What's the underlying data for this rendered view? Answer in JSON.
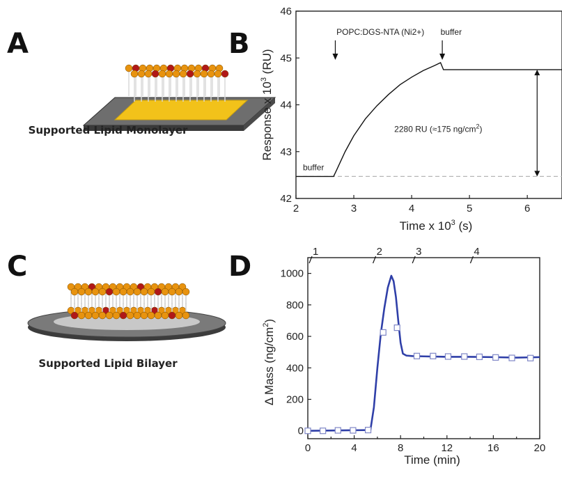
{
  "panels": {
    "A": {
      "letter": "A",
      "caption": "Supported Lipid Monolayer"
    },
    "B": {
      "letter": "B"
    },
    "C": {
      "letter": "C",
      "caption": "Supported Lipid Bilayer"
    },
    "D": {
      "letter": "D"
    }
  },
  "colors": {
    "bead_orange": "#e8930f",
    "bead_red": "#b01818",
    "substrate_yellow": "#f2c21a",
    "substrate_gray": "#7a7a7a",
    "series_blue": "#2f3fa8"
  },
  "chart_data": [
    {
      "id": "B",
      "type": "line",
      "xlabel_main": "Time x 10",
      "xlabel_exp": "3",
      "xlabel_unit": " (s)",
      "ylabel_main": "Response x 10",
      "ylabel_exp": "3",
      "ylabel_unit": " (RU)",
      "xlim": [
        2,
        6.6
      ],
      "ylim": [
        42,
        46
      ],
      "xticks": [
        2,
        3,
        4,
        5,
        6
      ],
      "yticks": [
        42,
        43,
        44,
        45,
        46
      ],
      "x": [
        2.0,
        2.65,
        2.7,
        2.85,
        3.0,
        3.2,
        3.4,
        3.6,
        3.8,
        4.0,
        4.2,
        4.4,
        4.5,
        4.55,
        4.7,
        5.0,
        5.5,
        6.0,
        6.6
      ],
      "y": [
        42.47,
        42.47,
        42.6,
        43.0,
        43.34,
        43.7,
        43.98,
        44.22,
        44.43,
        44.59,
        44.73,
        44.84,
        44.9,
        44.75,
        44.75,
        44.75,
        44.75,
        44.75,
        44.75
      ],
      "baseline": 42.47,
      "annotations": {
        "injection": "POPC:DGS-NTA (Ni2+)",
        "buffer_top": "buffer",
        "buffer_start": "buffer",
        "delta_main": "2280 RU (≈175 ng/cm",
        "delta_exp": "2",
        "delta_close": ")"
      }
    },
    {
      "id": "D",
      "type": "line",
      "xlabel": "Time (min)",
      "ylabel_main": "Δ Mass (ng/cm",
      "ylabel_exp": "2",
      "ylabel_close": ")",
      "xlim": [
        0,
        20
      ],
      "ylim": [
        -50,
        1100
      ],
      "xticks": [
        0,
        4,
        8,
        12,
        16,
        20
      ],
      "yticks": [
        0,
        200,
        400,
        600,
        800,
        1000
      ],
      "top_markers": [
        {
          "label": "1",
          "x": 0.3
        },
        {
          "label": "2",
          "x": 5.8
        },
        {
          "label": "3",
          "x": 9.2
        },
        {
          "label": "4",
          "x": 14.2
        }
      ],
      "x": [
        0,
        5.4,
        5.7,
        6.0,
        6.3,
        6.6,
        6.9,
        7.2,
        7.4,
        7.6,
        7.8,
        8.0,
        8.2,
        8.5,
        9.0,
        10.0,
        12.0,
        14.0,
        16.0,
        18.0,
        20.0
      ],
      "y": [
        0,
        5,
        150,
        400,
        620,
        780,
        910,
        985,
        950,
        850,
        700,
        560,
        490,
        478,
        475,
        473,
        470,
        470,
        468,
        465,
        468
      ],
      "markers_x": [
        0,
        1.3,
        2.6,
        3.9,
        5.2,
        6.5,
        7.7,
        9.4,
        10.8,
        12.1,
        13.5,
        14.8,
        16.2,
        17.6,
        19.2
      ],
      "markers_y": [
        0,
        0,
        3,
        3,
        5,
        625,
        655,
        475,
        475,
        472,
        472,
        470,
        466,
        463,
        462
      ]
    }
  ]
}
